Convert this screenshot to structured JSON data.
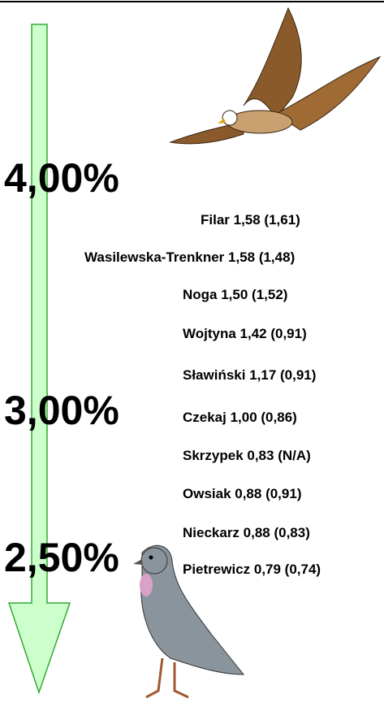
{
  "scale_labels": [
    "4,00%",
    "3,00%",
    "2,50%"
  ],
  "members": [
    "Filar 1,58 (1,61)",
    "Wasilewska-Trenkner 1,58 (1,48)",
    "Noga 1,50 (1,52)",
    "Wojtyna 1,42 (0,91)",
    "Sławiński 1,17 (0,91)",
    "Czekaj 1,00 (0,86)",
    "Skrzypek 0,83 (N/A)",
    "Owsiak 0,88 (0,91)",
    "Nieckarz 0,88 (0,83)",
    "Pietrewicz 0,79 (0,74)"
  ]
}
